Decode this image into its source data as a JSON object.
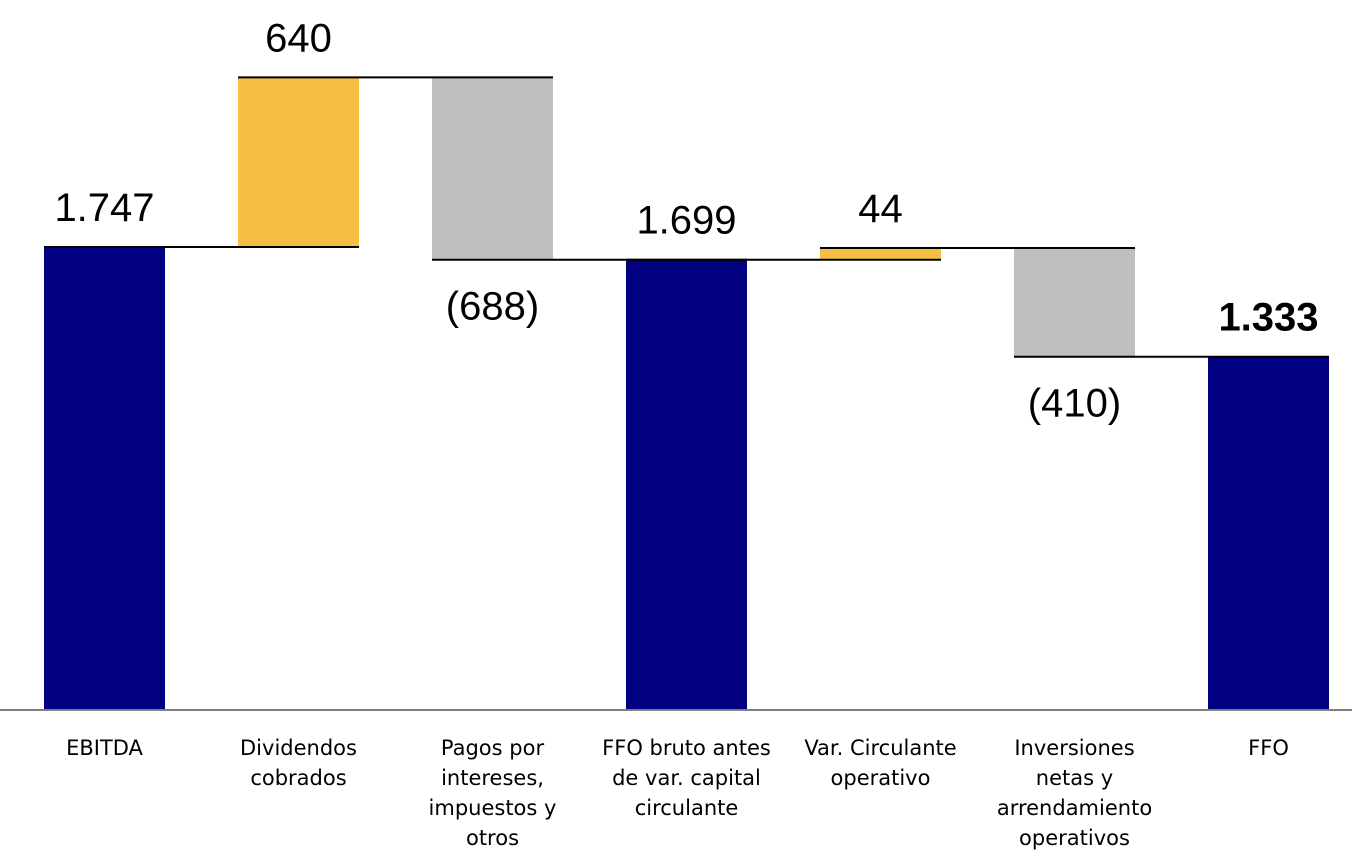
{
  "chart_data": {
    "type": "waterfall",
    "categories": [
      [
        "EBITDA"
      ],
      [
        "Dividendos",
        "cobrados"
      ],
      [
        "Pagos por",
        "intereses,",
        "impuestos y",
        "otros"
      ],
      [
        "FFO bruto antes",
        "de var. capital",
        "circulante"
      ],
      [
        "Var. Circulante",
        "operativo"
      ],
      [
        "Inversiones",
        "netas y",
        "arrendamiento",
        "operativos"
      ],
      [
        "FFO"
      ]
    ],
    "values": [
      1747,
      640,
      -688,
      1699,
      44,
      -410,
      1333
    ],
    "kinds": [
      "total",
      "increase",
      "decrease",
      "total",
      "increase",
      "decrease",
      "total"
    ],
    "labels": [
      "1.747",
      "640",
      "(688)",
      "1.699",
      "44",
      "(410)",
      "1.333"
    ],
    "bold_label": [
      false,
      false,
      false,
      false,
      false,
      false,
      true
    ],
    "ylim": [
      0,
      2700
    ],
    "colors": {
      "total": "#000080",
      "increase": "#F4BF42",
      "decrease": "#BFBFBF",
      "connector": "#000000",
      "axis": "#7F7F7F"
    }
  }
}
